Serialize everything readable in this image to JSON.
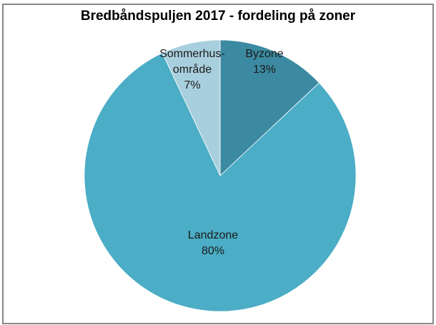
{
  "chart_data": {
    "type": "pie",
    "title": "Bredbåndspuljen 2017 - fordeling på zoner",
    "categories": [
      "Byzone",
      "Landzone",
      "Sommerhusområde"
    ],
    "values": [
      13,
      80,
      7
    ],
    "labels": [
      {
        "name": "Byzone",
        "pct": "13%"
      },
      {
        "name": "Landzone",
        "pct": "80%"
      },
      {
        "name_line1": "Sommerhus-",
        "name_line2": "område",
        "pct": "7%"
      }
    ],
    "colors": [
      "#3c8aa1",
      "#4badc6",
      "#a8cfdd"
    ],
    "legend": "none"
  }
}
